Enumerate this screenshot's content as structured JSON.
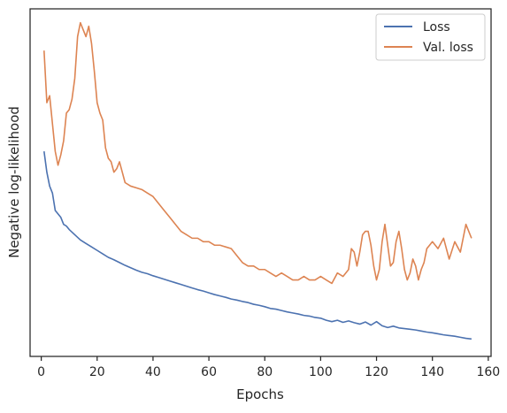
{
  "chart_data": {
    "type": "line",
    "xlabel": "Epochs",
    "ylabel": "Negative log-likelihood",
    "xlim": [
      -4,
      161
    ],
    "ylim": [
      0,
      1
    ],
    "x_ticks": [
      0,
      20,
      40,
      60,
      80,
      100,
      120,
      140,
      160
    ],
    "y_ticks_labeled": false,
    "grid": false,
    "legend_position": "top-right",
    "series": [
      {
        "name": "Loss",
        "color": "#4c72b0",
        "x": [
          1,
          2,
          3,
          4,
          5,
          6,
          7,
          8,
          9,
          10,
          12,
          14,
          16,
          18,
          20,
          22,
          24,
          26,
          28,
          30,
          32,
          34,
          36,
          38,
          40,
          42,
          44,
          46,
          48,
          50,
          52,
          54,
          56,
          58,
          60,
          62,
          64,
          66,
          68,
          70,
          72,
          74,
          76,
          78,
          80,
          82,
          84,
          86,
          88,
          90,
          92,
          94,
          96,
          98,
          100,
          102,
          104,
          106,
          108,
          110,
          112,
          114,
          116,
          118,
          120,
          122,
          124,
          126,
          128,
          130,
          132,
          134,
          136,
          138,
          140,
          142,
          144,
          146,
          148,
          150,
          152,
          154
        ],
        "y": [
          0.59,
          0.53,
          0.49,
          0.47,
          0.42,
          0.41,
          0.4,
          0.38,
          0.375,
          0.365,
          0.35,
          0.335,
          0.325,
          0.315,
          0.305,
          0.295,
          0.285,
          0.278,
          0.27,
          0.262,
          0.255,
          0.248,
          0.242,
          0.238,
          0.232,
          0.227,
          0.222,
          0.217,
          0.212,
          0.207,
          0.202,
          0.197,
          0.192,
          0.188,
          0.183,
          0.178,
          0.174,
          0.17,
          0.165,
          0.162,
          0.158,
          0.155,
          0.15,
          0.147,
          0.143,
          0.138,
          0.136,
          0.132,
          0.128,
          0.125,
          0.122,
          0.118,
          0.116,
          0.112,
          0.11,
          0.104,
          0.1,
          0.104,
          0.098,
          0.102,
          0.097,
          0.093,
          0.099,
          0.09,
          0.1,
          0.088,
          0.083,
          0.087,
          0.082,
          0.08,
          0.078,
          0.076,
          0.073,
          0.07,
          0.068,
          0.065,
          0.062,
          0.06,
          0.058,
          0.055,
          0.052,
          0.05
        ]
      },
      {
        "name": "Val. loss",
        "color": "#dd8452",
        "x": [
          1,
          2,
          3,
          4,
          5,
          6,
          7,
          8,
          9,
          10,
          11,
          12,
          13,
          14,
          15,
          16,
          17,
          18,
          19,
          20,
          21,
          22,
          23,
          24,
          25,
          26,
          27,
          28,
          29,
          30,
          32,
          34,
          36,
          38,
          40,
          42,
          44,
          46,
          48,
          50,
          52,
          54,
          56,
          58,
          60,
          62,
          64,
          66,
          68,
          70,
          72,
          74,
          76,
          78,
          80,
          82,
          84,
          86,
          88,
          90,
          92,
          94,
          96,
          98,
          100,
          102,
          104,
          106,
          108,
          110,
          111,
          112,
          113,
          114,
          115,
          116,
          117,
          118,
          119,
          120,
          121,
          122,
          123,
          124,
          125,
          126,
          127,
          128,
          129,
          130,
          131,
          132,
          133,
          134,
          135,
          136,
          137,
          138,
          139,
          140,
          142,
          144,
          146,
          148,
          150,
          152,
          154
        ],
        "y": [
          0.88,
          0.73,
          0.75,
          0.67,
          0.59,
          0.55,
          0.58,
          0.62,
          0.7,
          0.71,
          0.74,
          0.8,
          0.92,
          0.96,
          0.94,
          0.92,
          0.95,
          0.9,
          0.82,
          0.73,
          0.7,
          0.68,
          0.6,
          0.57,
          0.56,
          0.53,
          0.54,
          0.56,
          0.53,
          0.5,
          0.49,
          0.485,
          0.48,
          0.47,
          0.46,
          0.44,
          0.42,
          0.4,
          0.38,
          0.36,
          0.35,
          0.34,
          0.34,
          0.33,
          0.33,
          0.32,
          0.32,
          0.315,
          0.31,
          0.29,
          0.27,
          0.26,
          0.26,
          0.25,
          0.25,
          0.24,
          0.23,
          0.24,
          0.23,
          0.22,
          0.22,
          0.23,
          0.22,
          0.22,
          0.23,
          0.22,
          0.21,
          0.24,
          0.23,
          0.25,
          0.31,
          0.3,
          0.26,
          0.3,
          0.35,
          0.36,
          0.36,
          0.32,
          0.26,
          0.22,
          0.25,
          0.33,
          0.38,
          0.32,
          0.26,
          0.27,
          0.33,
          0.36,
          0.31,
          0.25,
          0.22,
          0.24,
          0.28,
          0.26,
          0.22,
          0.25,
          0.27,
          0.31,
          0.32,
          0.33,
          0.31,
          0.34,
          0.28,
          0.33,
          0.3,
          0.38,
          0.34
        ]
      }
    ]
  }
}
